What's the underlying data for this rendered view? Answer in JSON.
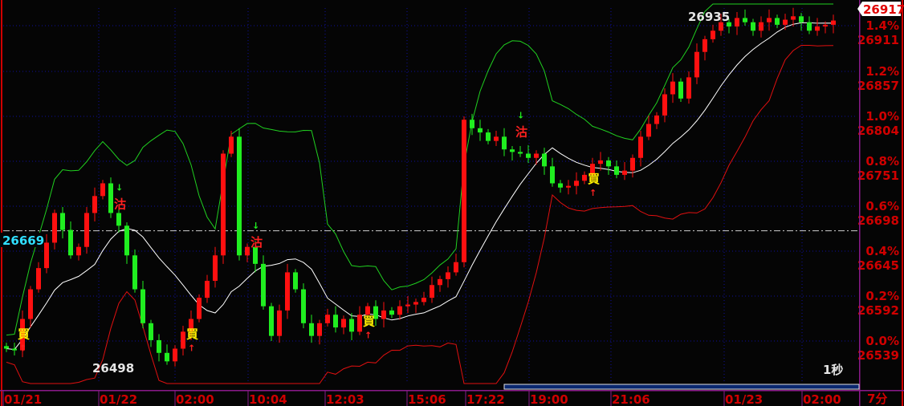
{
  "chart_data": {
    "type": "candlestick",
    "interval_label": "1秒",
    "period_label": "7分",
    "colors": {
      "up": "#ff1010",
      "down": "#20ee20",
      "mid_band": "#ffffff",
      "upper_band": "#20d020",
      "lower_band": "#e01010",
      "grid": "#1010a0",
      "reference": "#d0d0d0"
    },
    "y_ticks": [
      {
        "pct": "0.0%",
        "price": "26539"
      },
      {
        "pct": "0.2%",
        "price": "26592"
      },
      {
        "pct": "0.4%",
        "price": "26645"
      },
      {
        "pct": "0.6%",
        "price": "26698"
      },
      {
        "pct": "0.8%",
        "price": "26751"
      },
      {
        "pct": "1.0%",
        "price": "26804"
      },
      {
        "pct": "1.2%",
        "price": "26857"
      },
      {
        "pct": "1.4%",
        "price": "26911"
      }
    ],
    "ylim": [
      26485,
      26940
    ],
    "reference_price": "26669",
    "last_price": "26917",
    "high_label": "26935",
    "low_label": "26498",
    "x_ticks": [
      "01/21",
      "01/22",
      "02:00",
      "10:04",
      "12:03",
      "15:06",
      "17:22",
      "19:00",
      "21:06",
      "01/23",
      "02:00"
    ],
    "closes": [
      26530,
      26528,
      26565,
      26600,
      26625,
      26655,
      26690,
      26670,
      26640,
      26650,
      26690,
      26710,
      26725,
      26690,
      26675,
      26640,
      26600,
      26560,
      26540,
      26525,
      26515,
      26530,
      26550,
      26565,
      26590,
      26610,
      26640,
      26760,
      26780,
      26640,
      26650,
      26630,
      26580,
      26545,
      26575,
      26620,
      26600,
      26560,
      26545,
      26560,
      26570,
      26555,
      26565,
      26550,
      26570,
      26580,
      26565,
      26575,
      26570,
      26580,
      26582,
      26585,
      26590,
      26605,
      26612,
      26620,
      26632,
      26800,
      26790,
      26785,
      26775,
      26780,
      26765,
      26762,
      26760,
      26755,
      26760,
      26745,
      26725,
      26720,
      26722,
      26728,
      26735,
      26748,
      26752,
      26745,
      26735,
      26740,
      26755,
      26780,
      26795,
      26805,
      26830,
      26845,
      26825,
      26850,
      26880,
      26895,
      26905,
      26915,
      26910,
      26920,
      26915,
      26905,
      26915,
      26920,
      26912,
      26918,
      26922,
      26915,
      26905,
      26910,
      26912,
      26917
    ],
    "signals": [
      {
        "text": "買",
        "index": 2,
        "type": "buy"
      },
      {
        "text": "沽",
        "index": 14,
        "type": "sell"
      },
      {
        "text": "買",
        "index": 23,
        "type": "buy"
      },
      {
        "text": "沽",
        "index": 31,
        "type": "sell"
      },
      {
        "text": "買",
        "index": 45,
        "type": "buy"
      },
      {
        "text": "沽",
        "index": 64,
        "type": "sell"
      },
      {
        "text": "買",
        "index": 73,
        "type": "buy"
      }
    ]
  }
}
